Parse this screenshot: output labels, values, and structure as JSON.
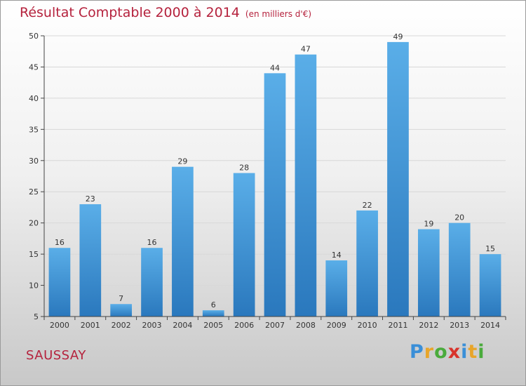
{
  "header": {
    "title": "Résultat Comptable 2000 à 2014",
    "subtitle": "(en milliers d'€)"
  },
  "footer": {
    "place": "SAUSSAY",
    "logo_letters": [
      "P",
      "r",
      "o",
      "x",
      "i",
      "t",
      "i"
    ],
    "logo_colors": [
      "#3a8fd8",
      "#e8a52a",
      "#4aab3c",
      "#d8342c",
      "#3a8fd8",
      "#e8a52a",
      "#4aab3c"
    ]
  },
  "chart_data": {
    "type": "bar",
    "title": "Résultat Comptable 2000 à 2014",
    "subtitle": "(en milliers d'€)",
    "xlabel": "",
    "ylabel": "",
    "categories": [
      "2000",
      "2001",
      "2002",
      "2003",
      "2004",
      "2005",
      "2006",
      "2007",
      "2008",
      "2009",
      "2010",
      "2011",
      "2012",
      "2013",
      "2014"
    ],
    "values": [
      16,
      23,
      7,
      16,
      29,
      6,
      28,
      44,
      47,
      14,
      22,
      49,
      19,
      20,
      15
    ],
    "ylim": [
      5,
      50
    ],
    "yticks": [
      5,
      10,
      15,
      20,
      25,
      30,
      35,
      40,
      45,
      50
    ],
    "grid": true,
    "bar_color_top": "#5aaee8",
    "bar_color_bottom": "#2a78bd"
  }
}
